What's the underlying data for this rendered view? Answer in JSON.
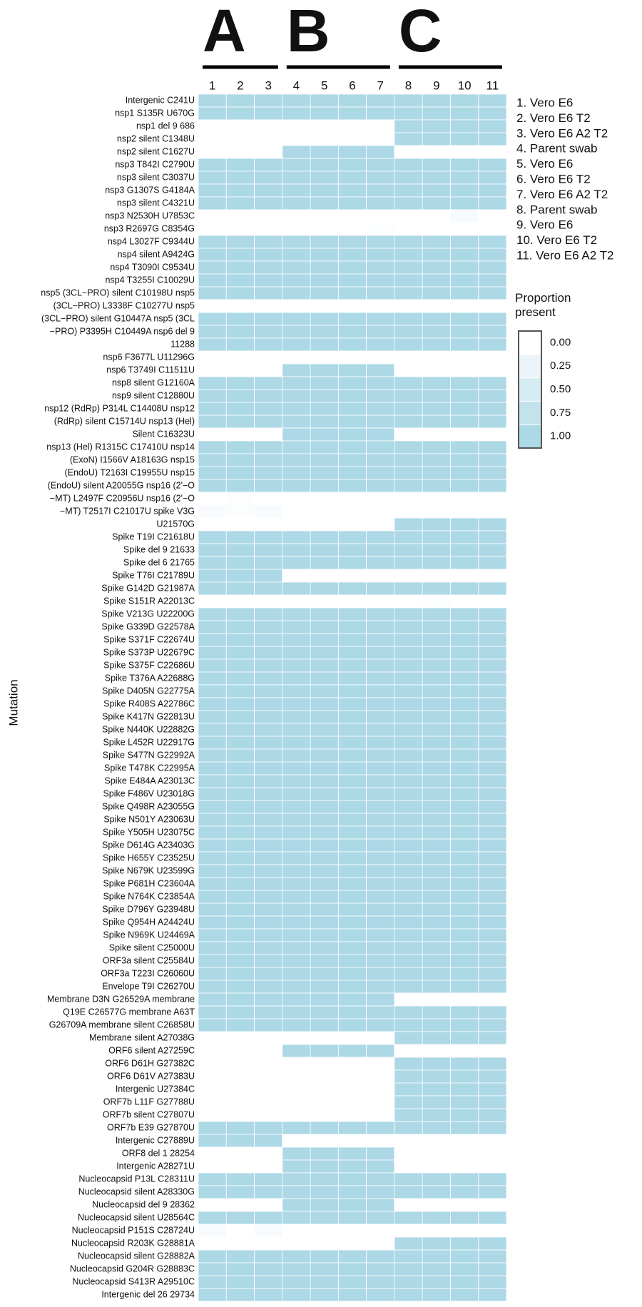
{
  "chart_data": {
    "type": "heatmap",
    "y_label": "Mutation",
    "x": [
      1,
      2,
      3,
      4,
      5,
      6,
      7,
      8,
      9,
      10,
      11
    ],
    "x_groups": [
      "A",
      "A",
      "A",
      "B",
      "B",
      "B",
      "B",
      "C",
      "C",
      "C",
      "C"
    ],
    "legend_items": [
      "1. Vero E6",
      "2. Vero E6 T2",
      "3. Vero E6 A2 T2",
      "4. Parent swab",
      "5. Vero E6",
      "6. Vero E6 T2",
      "7. Vero E6 A2 T2",
      "8. Parent swab",
      "9. Vero E6",
      "10. Vero E6 T2",
      "11. Vero E6 A2 T2"
    ],
    "colorbar": {
      "title": "Proportion present",
      "color": "#add8e6",
      "ticks": [
        {
          "value": 0,
          "label": "0.00"
        },
        {
          "value": 0.25,
          "label": "0.25"
        },
        {
          "value": 0.5,
          "label": "0.50"
        },
        {
          "value": 0.75,
          "label": "0.75"
        },
        {
          "value": 1,
          "label": "1.00"
        }
      ]
    },
    "categories": [
      "Intergenic C241U",
      "nsp1 S135R U670G",
      "nsp1 del 9 686",
      "nsp2 silent C1348U",
      "nsp2 silent C1627U",
      "nsp3 T842I C2790U",
      "nsp3 silent C3037U",
      "nsp3 G1307S G4184A",
      "nsp3 silent C4321U",
      "nsp3 N2530H U7853C",
      "nsp3 R2697G C8354G",
      "nsp4 L3027F C9344U",
      "nsp4 silent A9424G",
      "nsp4 T3090I C9534U",
      "nsp4 T3255I C10029U",
      "nsp5 (3CL−PRO) silent C10198U nsp5",
      "(3CL−PRO) L3338F C10277U nsp5",
      "(3CL−PRO) silent G10447A nsp5 (3CL",
      "−PRO) P3395H C10449A nsp6 del 9",
      "11288",
      "nsp6 F3677L U11296G",
      "nsp6 T3749I C11511U",
      "nsp8 silent G12160A",
      "nsp9 silent C12880U",
      "nsp12 (RdRp) P314L C14408U nsp12",
      "(RdRp) silent C15714U nsp13 (Hel)",
      "Silent C16323U",
      "nsp13 (Hel) R1315C C17410U nsp14",
      "(ExoN) I1566V A18163G nsp15",
      "(EndoU) T2163I C19955U nsp15",
      "(EndoU) silent A20055G nsp16 (2'−O",
      "−MT) L2497F C20956U nsp16 (2'−O",
      "−MT) T2517I C21017U spike V3G",
      "U21570G",
      "Spike T19I C21618U",
      "Spike del 9 21633",
      "Spike del 6 21765",
      "Spike T76I C21789U",
      "Spike G142D G21987A",
      "Spike S151R A22013C",
      "Spike V213G U22200G",
      "Spike G339D G22578A",
      "Spike S371F C22674U",
      "Spike S373P U22679C",
      "Spike S375F C22686U",
      "Spike T376A A22688G",
      "Spike D405N G22775A",
      "Spike R408S A22786C",
      "Spike K417N G22813U",
      "Spike N440K U22882G",
      "Spike L452R U22917G",
      "Spike S477N G22992A",
      "Spike T478K C22995A",
      "Spike E484A A23013C",
      "Spike F486V U23018G",
      "Spike Q498R A23055G",
      "Spike N501Y A23063U",
      "Spike Y505H U23075C",
      "Spike D614G A23403G",
      "Spike H655Y C23525U",
      "Spike N679K U23599G",
      "Spike P681H C23604A",
      "Spike N764K C23854A",
      "Spike D796Y G23948U",
      "Spike Q954H A24424U",
      "Spike N969K U24469A",
      "Spike silent C25000U",
      "ORF3a silent C25584U",
      "ORF3a T223I C26060U",
      "Envelope T9I C26270U",
      "Membrane D3N G26529A membrane",
      "Q19E C26577G membrane A63T",
      "G26709A membrane silent C26858U",
      "Membrane silent A27038G",
      "ORF6 silent A27259C",
      "ORF6 D61H G27382C",
      "ORF6 D61V A27383U",
      "Intergenic U27384C",
      "ORF7b L11F G27788U",
      "ORF7b silent C27807U",
      "ORF7b E39 G27870U",
      "Intergenic C27889U",
      "ORF8 del 1 28254",
      "Intergenic A28271U",
      "Nucleocapsid P13L C28311U",
      "Nucleocapsid silent A28330G",
      "Nucleocapsid del 9 28362",
      "Nucleocapsid silent U28564C",
      "Nucleocapsid P151S C28724U",
      "Nucleocapsid R203K G28881A",
      "Nucleocapsid silent G28882A",
      "Nucleocapsid G204R G28883C",
      "Nucleocapsid S413R A29510C",
      "Intergenic del 26 29734"
    ],
    "values": [
      [
        1,
        1,
        1,
        1,
        1,
        1,
        1,
        1,
        1,
        1,
        1
      ],
      [
        1,
        1,
        1,
        1,
        1,
        1,
        1,
        1,
        1,
        1,
        1
      ],
      [
        0,
        0,
        0,
        0,
        0,
        0,
        0,
        1,
        1,
        1,
        1
      ],
      [
        0,
        0,
        0,
        0,
        0,
        0,
        0,
        1,
        1,
        1,
        1
      ],
      [
        0,
        0,
        0,
        1,
        1,
        1,
        1,
        0,
        0,
        0,
        0
      ],
      [
        1,
        1,
        1,
        1,
        1,
        1,
        1,
        1,
        1,
        1,
        1
      ],
      [
        1,
        1,
        1,
        1,
        1,
        1,
        1,
        1,
        1,
        1,
        1
      ],
      [
        1,
        1,
        1,
        1,
        1,
        1,
        1,
        1,
        1,
        1,
        1
      ],
      [
        1,
        1,
        1,
        1,
        1,
        1,
        1,
        1,
        1,
        1,
        1
      ],
      [
        0,
        0,
        0,
        0,
        0,
        0,
        0,
        0,
        0,
        0.1,
        0
      ],
      [
        0,
        0,
        0,
        0,
        0,
        0,
        0.05,
        0,
        0,
        0,
        0
      ],
      [
        1,
        1,
        1,
        1,
        1,
        1,
        1,
        1,
        1,
        1,
        1
      ],
      [
        1,
        1,
        1,
        1,
        1,
        1,
        1,
        1,
        1,
        1,
        1
      ],
      [
        1,
        1,
        1,
        1,
        1,
        1,
        1,
        1,
        1,
        1,
        1
      ],
      [
        1,
        1,
        1,
        1,
        1,
        1,
        1,
        1,
        1,
        1,
        1
      ],
      [
        1,
        1,
        1,
        1,
        1,
        1,
        1,
        1,
        1,
        1,
        1
      ],
      [
        0,
        0,
        0,
        0,
        0,
        0,
        0,
        0,
        0,
        0,
        0
      ],
      [
        1,
        1,
        1,
        1,
        1,
        1,
        1,
        1,
        1,
        1,
        1
      ],
      [
        1,
        1,
        1,
        1,
        1,
        1,
        1,
        1,
        1,
        1,
        1
      ],
      [
        1,
        1,
        1,
        1,
        1,
        1,
        1,
        1,
        1,
        1,
        1
      ],
      [
        0,
        0,
        0,
        0,
        0,
        0,
        0,
        0,
        0,
        0,
        0
      ],
      [
        0,
        0,
        0,
        1,
        1,
        1,
        1,
        0,
        0,
        0,
        0
      ],
      [
        1,
        1,
        1,
        1,
        1,
        1,
        1,
        1,
        1,
        1,
        1
      ],
      [
        1,
        1,
        1,
        1,
        1,
        1,
        1,
        1,
        1,
        1,
        1
      ],
      [
        1,
        1,
        1,
        1,
        1,
        1,
        1,
        1,
        1,
        1,
        1
      ],
      [
        1,
        1,
        1,
        1,
        1,
        1,
        1,
        1,
        1,
        1,
        1
      ],
      [
        0,
        0,
        0,
        1,
        1,
        1,
        1,
        0,
        0,
        0,
        0
      ],
      [
        1,
        1,
        1,
        1,
        1,
        1,
        1,
        1,
        1,
        1,
        1
      ],
      [
        1,
        1,
        1,
        1,
        1,
        1,
        1,
        1,
        1,
        1,
        1
      ],
      [
        1,
        1,
        1,
        1,
        1,
        1,
        1,
        1,
        1,
        1,
        1
      ],
      [
        1,
        1,
        1,
        1,
        1,
        1,
        1,
        1,
        1,
        1,
        1
      ],
      [
        0,
        0.05,
        0,
        0,
        0,
        0,
        0,
        0,
        0,
        0,
        0
      ],
      [
        0.1,
        0.05,
        0.1,
        0,
        0,
        0,
        0,
        0,
        0,
        0,
        0
      ],
      [
        0,
        0,
        0,
        0,
        0,
        0,
        0,
        1,
        1,
        1,
        1
      ],
      [
        1,
        1,
        1,
        1,
        1,
        1,
        1,
        1,
        1,
        1,
        1
      ],
      [
        1,
        1,
        1,
        1,
        1,
        1,
        1,
        1,
        1,
        1,
        1
      ],
      [
        1,
        1,
        1,
        1,
        1,
        1,
        1,
        1,
        1,
        1,
        1
      ],
      [
        1,
        1,
        1,
        0,
        0,
        0,
        0,
        0,
        0,
        0,
        0
      ],
      [
        1,
        1,
        1,
        1,
        1,
        1,
        1,
        1,
        1,
        1,
        1
      ],
      [
        0,
        0,
        0,
        0,
        0,
        0,
        0,
        0,
        0.05,
        0,
        0
      ],
      [
        1,
        1,
        1,
        1,
        1,
        1,
        1,
        1,
        1,
        1,
        1
      ],
      [
        1,
        1,
        1,
        1,
        1,
        1,
        1,
        1,
        1,
        1,
        1
      ],
      [
        1,
        1,
        1,
        1,
        1,
        1,
        1,
        1,
        1,
        1,
        1
      ],
      [
        1,
        1,
        1,
        1,
        1,
        1,
        1,
        1,
        1,
        1,
        1
      ],
      [
        1,
        1,
        1,
        1,
        1,
        1,
        1,
        1,
        1,
        1,
        1
      ],
      [
        1,
        1,
        1,
        1,
        1,
        1,
        1,
        1,
        1,
        1,
        1
      ],
      [
        1,
        1,
        1,
        1,
        1,
        1,
        1,
        1,
        1,
        1,
        1
      ],
      [
        1,
        1,
        1,
        1,
        1,
        1,
        1,
        1,
        1,
        1,
        1
      ],
      [
        1,
        1,
        1,
        1,
        1,
        1,
        1,
        1,
        1,
        1,
        1
      ],
      [
        1,
        1,
        1,
        1,
        1,
        1,
        1,
        1,
        1,
        1,
        1
      ],
      [
        1,
        1,
        1,
        1,
        1,
        1,
        1,
        1,
        1,
        1,
        1
      ],
      [
        1,
        1,
        1,
        1,
        1,
        1,
        1,
        1,
        1,
        1,
        1
      ],
      [
        1,
        1,
        1,
        1,
        1,
        1,
        1,
        1,
        1,
        1,
        1
      ],
      [
        1,
        1,
        1,
        1,
        1,
        1,
        1,
        1,
        1,
        1,
        1
      ],
      [
        1,
        1,
        1,
        1,
        1,
        1,
        1,
        1,
        1,
        1,
        1
      ],
      [
        1,
        1,
        1,
        1,
        1,
        1,
        1,
        1,
        1,
        1,
        1
      ],
      [
        1,
        1,
        1,
        1,
        1,
        1,
        1,
        1,
        1,
        1,
        1
      ],
      [
        1,
        1,
        1,
        1,
        1,
        1,
        1,
        1,
        1,
        1,
        1
      ],
      [
        1,
        1,
        1,
        1,
        1,
        1,
        1,
        1,
        1,
        1,
        1
      ],
      [
        1,
        1,
        1,
        1,
        1,
        1,
        1,
        1,
        1,
        1,
        1
      ],
      [
        1,
        1,
        1,
        1,
        1,
        1,
        1,
        1,
        1,
        1,
        1
      ],
      [
        1,
        1,
        1,
        1,
        1,
        1,
        1,
        1,
        1,
        1,
        1
      ],
      [
        1,
        1,
        1,
        1,
        1,
        1,
        1,
        1,
        1,
        1,
        1
      ],
      [
        1,
        1,
        1,
        1,
        1,
        1,
        1,
        1,
        1,
        1,
        1
      ],
      [
        1,
        1,
        1,
        1,
        1,
        1,
        1,
        1,
        1,
        1,
        1
      ],
      [
        1,
        1,
        1,
        1,
        1,
        1,
        1,
        1,
        1,
        1,
        1
      ],
      [
        1,
        1,
        1,
        1,
        1,
        1,
        1,
        1,
        1,
        1,
        1
      ],
      [
        1,
        1,
        1,
        1,
        1,
        1,
        1,
        1,
        1,
        1,
        1
      ],
      [
        1,
        1,
        1,
        1,
        1,
        1,
        1,
        1,
        1,
        1,
        1
      ],
      [
        1,
        1,
        1,
        1,
        1,
        1,
        1,
        1,
        1,
        1,
        1
      ],
      [
        1,
        1,
        1,
        1,
        1,
        1,
        1,
        0,
        0,
        0,
        0
      ],
      [
        1,
        1,
        1,
        1,
        1,
        1,
        1,
        1,
        1,
        1,
        1
      ],
      [
        1,
        1,
        1,
        1,
        1,
        1,
        1,
        1,
        1,
        1,
        1
      ],
      [
        0,
        0,
        0,
        0,
        0,
        0,
        0,
        1,
        1,
        1,
        1
      ],
      [
        0,
        0,
        0,
        1,
        1,
        1,
        1,
        0,
        0,
        0,
        0
      ],
      [
        0,
        0,
        0,
        0,
        0,
        0,
        0,
        1,
        1,
        1,
        1
      ],
      [
        0,
        0,
        0,
        0,
        0,
        0,
        0,
        1,
        1,
        1,
        1
      ],
      [
        0,
        0,
        0,
        0,
        0,
        0,
        0,
        1,
        1,
        1,
        1
      ],
      [
        0,
        0,
        0,
        0,
        0,
        0,
        0,
        1,
        1,
        1,
        1
      ],
      [
        0,
        0,
        0,
        0,
        0,
        0,
        0,
        1,
        1,
        1,
        1
      ],
      [
        1,
        1,
        1,
        1,
        1,
        1,
        1,
        1,
        1,
        1,
        1
      ],
      [
        1,
        1,
        1,
        0,
        0,
        0,
        0,
        0,
        0,
        0,
        0
      ],
      [
        0,
        0,
        0,
        1,
        1,
        1,
        1,
        0,
        0,
        0,
        0
      ],
      [
        0,
        0,
        0,
        1,
        1,
        1,
        1,
        0,
        0,
        0,
        0
      ],
      [
        1,
        1,
        1,
        1,
        1,
        1,
        1,
        1,
        1,
        1,
        1
      ],
      [
        1,
        1,
        1,
        1,
        1,
        1,
        1,
        1,
        1,
        1,
        1
      ],
      [
        0,
        0,
        0,
        1,
        1,
        1,
        1,
        0,
        0,
        0,
        0
      ],
      [
        1,
        1,
        1,
        1,
        1,
        1,
        1,
        1,
        1,
        1,
        1
      ],
      [
        0.1,
        0,
        0.1,
        0,
        0,
        0,
        0,
        0,
        0,
        0,
        0
      ],
      [
        0,
        0,
        0,
        0,
        0,
        0,
        0,
        1,
        1,
        1,
        1
      ],
      [
        1,
        1,
        1,
        1,
        1,
        1,
        1,
        1,
        1,
        1,
        1
      ],
      [
        1,
        1,
        1,
        1,
        1,
        1,
        1,
        1,
        1,
        1,
        1
      ],
      [
        1,
        1,
        1,
        1,
        1,
        1,
        1,
        1,
        1,
        1,
        1
      ],
      [
        1,
        1,
        1,
        1,
        1,
        1,
        1,
        1,
        1,
        1,
        1
      ]
    ]
  }
}
